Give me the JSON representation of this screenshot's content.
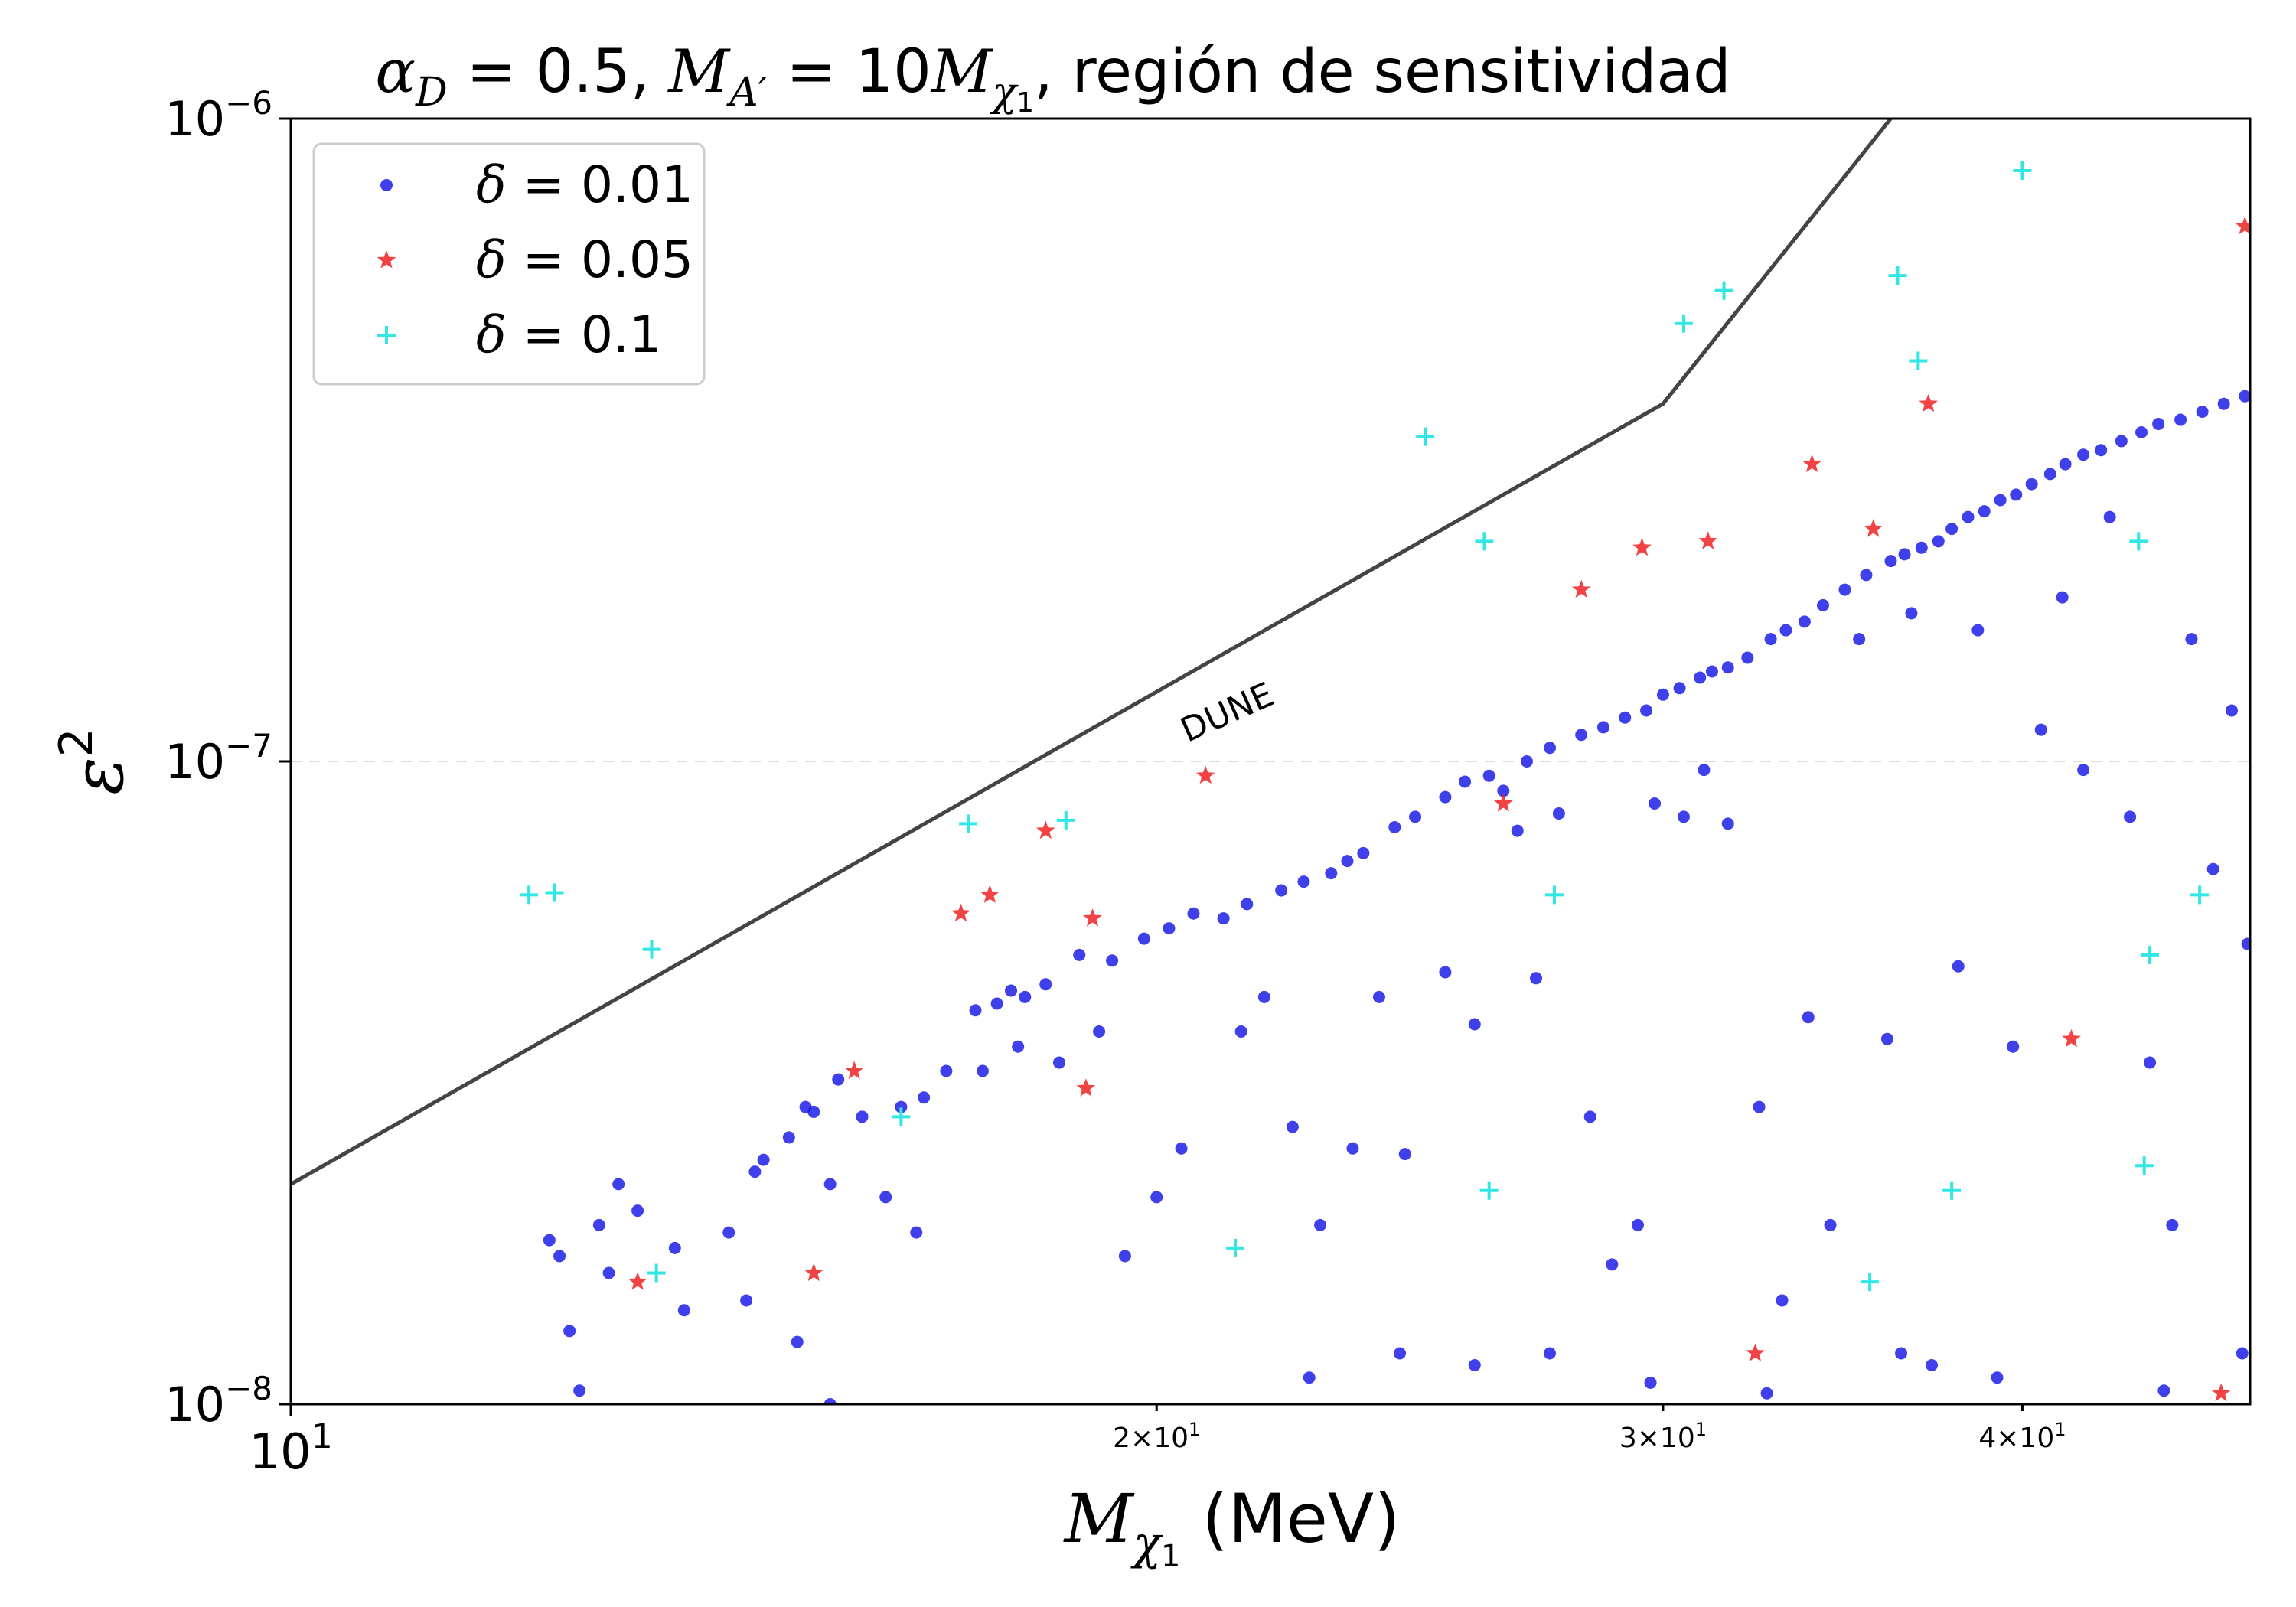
{
  "chart_data": {
    "type": "scatter",
    "title": {
      "alpha_sym": "α",
      "alpha_sub": "D",
      "alpha_val": " = 0.5, ",
      "mass_sym": "M",
      "mass_sub": "A′",
      "mass_eq": " = 10",
      "mass2_sym": "M",
      "mass2_sub": "χ",
      "mass2_subsub": "1",
      "rest": ", región de sensitividad"
    },
    "xlabel": {
      "sym": "M",
      "sub": "χ",
      "subsub": "1",
      "unit": " (MeV)"
    },
    "ylabel": {
      "sym": "ε",
      "sup": "2"
    },
    "xscale": "log",
    "yscale": "log",
    "xlim": [
      10,
      48
    ],
    "ylim": [
      1e-08,
      1e-06
    ],
    "x_ticks": [
      {
        "value": 10,
        "base": "10",
        "exp": "1",
        "major": true
      },
      {
        "value": 20,
        "base": "2×10",
        "exp": "1",
        "major": false
      },
      {
        "value": 30,
        "base": "3×10",
        "exp": "1",
        "major": false
      },
      {
        "value": 40,
        "base": "4×10",
        "exp": "1",
        "major": false
      }
    ],
    "y_ticks": [
      {
        "value": 1e-08,
        "base": "10",
        "exp": "−8"
      },
      {
        "value": 1e-07,
        "base": "10",
        "exp": "−7"
      },
      {
        "value": 1e-06,
        "base": "10",
        "exp": "−6"
      }
    ],
    "hline": {
      "value": 1e-07,
      "color": "#dddddd"
    },
    "legend_position": "top-left",
    "curve": {
      "label": "DUNE",
      "label_at": [
        20.5,
        1.07e-07
      ],
      "color": "#444444",
      "points": [
        [
          10,
          2.2e-08
        ],
        [
          30,
          3.6e-07
        ],
        [
          36,
          1e-06
        ]
      ]
    },
    "series": [
      {
        "name": "δ = 0.01",
        "name_sym": "δ",
        "name_val": " = 0.01",
        "marker": "dot",
        "color": "#1f1fe6",
        "points": [
          [
            12.3,
            1.8e-08
          ],
          [
            12.4,
            1.7e-08
          ],
          [
            12.8,
            1.9e-08
          ],
          [
            13.0,
            2.2e-08
          ],
          [
            13.2,
            2e-08
          ],
          [
            13.6,
            1.75e-08
          ],
          [
            14.2,
            1.85e-08
          ],
          [
            14.5,
            2.3e-08
          ],
          [
            14.6,
            2.4e-08
          ],
          [
            14.9,
            2.6e-08
          ],
          [
            15.1,
            2.9e-08
          ],
          [
            15.2,
            2.85e-08
          ],
          [
            15.5,
            3.2e-08
          ],
          [
            15.8,
            2.8e-08
          ],
          [
            16.3,
            2.9e-08
          ],
          [
            16.6,
            3e-08
          ],
          [
            16.9,
            3.3e-08
          ],
          [
            17.3,
            4.1e-08
          ],
          [
            17.6,
            4.2e-08
          ],
          [
            17.8,
            4.4e-08
          ],
          [
            18.0,
            4.3e-08
          ],
          [
            18.3,
            4.5e-08
          ],
          [
            18.8,
            5e-08
          ],
          [
            19.3,
            4.9e-08
          ],
          [
            19.8,
            5.3e-08
          ],
          [
            20.2,
            5.5e-08
          ],
          [
            20.6,
            5.8e-08
          ],
          [
            21.1,
            5.7e-08
          ],
          [
            21.5,
            6e-08
          ],
          [
            22.1,
            6.3e-08
          ],
          [
            22.5,
            6.5e-08
          ],
          [
            23.0,
            6.7e-08
          ],
          [
            23.3,
            7e-08
          ],
          [
            23.6,
            7.2e-08
          ],
          [
            24.2,
            7.9e-08
          ],
          [
            24.6,
            8.2e-08
          ],
          [
            25.2,
            8.8e-08
          ],
          [
            25.6,
            9.3e-08
          ],
          [
            26.1,
            9.5e-08
          ],
          [
            26.4,
            9e-08
          ],
          [
            26.9,
            1e-07
          ],
          [
            27.4,
            1.05e-07
          ],
          [
            28.1,
            1.1e-07
          ],
          [
            28.6,
            1.13e-07
          ],
          [
            29.1,
            1.17e-07
          ],
          [
            29.6,
            1.2e-07
          ],
          [
            30.0,
            1.27e-07
          ],
          [
            30.4,
            1.3e-07
          ],
          [
            30.9,
            1.35e-07
          ],
          [
            31.2,
            1.38e-07
          ],
          [
            31.6,
            1.4e-07
          ],
          [
            32.1,
            1.45e-07
          ],
          [
            32.7,
            1.55e-07
          ],
          [
            33.1,
            1.6e-07
          ],
          [
            33.6,
            1.65e-07
          ],
          [
            34.1,
            1.75e-07
          ],
          [
            34.7,
            1.85e-07
          ],
          [
            35.3,
            1.95e-07
          ],
          [
            36.0,
            2.05e-07
          ],
          [
            36.4,
            2.1e-07
          ],
          [
            36.9,
            2.15e-07
          ],
          [
            37.4,
            2.2e-07
          ],
          [
            37.8,
            2.3e-07
          ],
          [
            38.3,
            2.4e-07
          ],
          [
            38.8,
            2.45e-07
          ],
          [
            39.3,
            2.55e-07
          ],
          [
            39.8,
            2.6e-07
          ],
          [
            40.3,
            2.7e-07
          ],
          [
            40.9,
            2.8e-07
          ],
          [
            41.4,
            2.9e-07
          ],
          [
            42.0,
            3e-07
          ],
          [
            42.6,
            3.05e-07
          ],
          [
            43.3,
            3.15e-07
          ],
          [
            44.0,
            3.25e-07
          ],
          [
            44.6,
            3.35e-07
          ],
          [
            45.4,
            3.4e-07
          ],
          [
            46.2,
            3.5e-07
          ],
          [
            47.0,
            3.6e-07
          ],
          [
            47.8,
            3.7e-07
          ],
          [
            12.5,
            1.3e-08
          ],
          [
            12.9,
            1.6e-08
          ],
          [
            13.7,
            1.4e-08
          ],
          [
            14.4,
            1.45e-08
          ],
          [
            15.0,
            1.25e-08
          ],
          [
            15.4,
            2.2e-08
          ],
          [
            16.1,
            2.1e-08
          ],
          [
            16.5,
            1.85e-08
          ],
          [
            17.4,
            3.3e-08
          ],
          [
            17.9,
            3.6e-08
          ],
          [
            18.5,
            3.4e-08
          ],
          [
            19.1,
            3.8e-08
          ],
          [
            19.5,
            1.7e-08
          ],
          [
            20.0,
            2.1e-08
          ],
          [
            20.4,
            2.5e-08
          ],
          [
            21.4,
            3.8e-08
          ],
          [
            21.8,
            4.3e-08
          ],
          [
            22.3,
            2.7e-08
          ],
          [
            22.8,
            1.9e-08
          ],
          [
            23.4,
            2.5e-08
          ],
          [
            23.9,
            4.3e-08
          ],
          [
            24.4,
            2.45e-08
          ],
          [
            25.2,
            4.7e-08
          ],
          [
            25.8,
            3.9e-08
          ],
          [
            26.7,
            7.8e-08
          ],
          [
            27.1,
            4.6e-08
          ],
          [
            27.6,
            8.3e-08
          ],
          [
            28.3,
            2.8e-08
          ],
          [
            28.8,
            1.65e-08
          ],
          [
            29.4,
            1.9e-08
          ],
          [
            29.8,
            8.6e-08
          ],
          [
            30.5,
            8.2e-08
          ],
          [
            31.0,
            9.7e-08
          ],
          [
            31.6,
            8e-08
          ],
          [
            32.4,
            2.9e-08
          ],
          [
            33.0,
            1.45e-08
          ],
          [
            33.7,
            4e-08
          ],
          [
            34.3,
            1.9e-08
          ],
          [
            35.1,
            1.55e-07
          ],
          [
            35.9,
            3.7e-08
          ],
          [
            36.6,
            1.7e-07
          ],
          [
            37.2,
            1.15e-08
          ],
          [
            38.0,
            4.8e-08
          ],
          [
            38.6,
            1.6e-07
          ],
          [
            39.7,
            3.6e-08
          ],
          [
            40.6,
            1.12e-07
          ],
          [
            41.3,
            1.8e-07
          ],
          [
            42.0,
            9.7e-08
          ],
          [
            42.9,
            2.4e-07
          ],
          [
            43.6,
            8.2e-08
          ],
          [
            44.3,
            3.4e-08
          ],
          [
            45.1,
            1.9e-08
          ],
          [
            45.8,
            1.55e-07
          ],
          [
            46.6,
            6.8e-08
          ],
          [
            47.3,
            1.2e-07
          ],
          [
            47.9,
            5.2e-08
          ],
          [
            12.6,
            1.05e-08
          ],
          [
            15.4,
            1e-08
          ],
          [
            22.6,
            1.1e-08
          ],
          [
            24.3,
            1.2e-08
          ],
          [
            25.8,
            1.15e-08
          ],
          [
            27.4,
            1.2e-08
          ],
          [
            29.7,
            1.08e-08
          ],
          [
            32.6,
            1.04e-08
          ],
          [
            36.3,
            1.2e-08
          ],
          [
            39.2,
            1.1e-08
          ],
          [
            44.8,
            1.05e-08
          ],
          [
            47.7,
            1.2e-08
          ]
        ]
      },
      {
        "name": "δ = 0.05",
        "name_sym": "δ",
        "name_val": " = 0.05",
        "marker": "star",
        "color": "#ee2222",
        "points": [
          [
            13.2,
            1.55e-08
          ],
          [
            15.2,
            1.6e-08
          ],
          [
            15.7,
            3.3e-08
          ],
          [
            17.1,
            5.8e-08
          ],
          [
            17.5,
            6.2e-08
          ],
          [
            18.3,
            7.8e-08
          ],
          [
            18.9,
            3.1e-08
          ],
          [
            19.0,
            5.7e-08
          ],
          [
            20.8,
            9.5e-08
          ],
          [
            26.4,
            8.6e-08
          ],
          [
            28.1,
            1.85e-07
          ],
          [
            29.5,
            2.15e-07
          ],
          [
            31.1,
            2.2e-07
          ],
          [
            32.3,
            1.2e-08
          ],
          [
            33.8,
            2.9e-07
          ],
          [
            35.5,
            2.3e-07
          ],
          [
            37.1,
            3.6e-07
          ],
          [
            41.6,
            3.7e-08
          ],
          [
            46.9,
            1.04e-08
          ],
          [
            47.8,
            6.8e-07
          ]
        ]
      },
      {
        "name": "δ = 0.1",
        "name_sym": "δ",
        "name_val": " = 0.1",
        "marker": "plus",
        "color": "#33e6e6",
        "points": [
          [
            12.1,
            6.2e-08
          ],
          [
            12.35,
            6.25e-08
          ],
          [
            13.35,
            5.1e-08
          ],
          [
            13.4,
            1.6e-08
          ],
          [
            16.3,
            2.8e-08
          ],
          [
            17.2,
            8e-08
          ],
          [
            18.6,
            8.1e-08
          ],
          [
            21.3,
            1.75e-08
          ],
          [
            24.8,
            3.2e-07
          ],
          [
            26.0,
            2.2e-07
          ],
          [
            26.1,
            2.15e-08
          ],
          [
            27.5,
            6.2e-08
          ],
          [
            30.5,
            4.8e-07
          ],
          [
            31.5,
            5.4e-07
          ],
          [
            35.4,
            1.55e-08
          ],
          [
            36.2,
            5.7e-07
          ],
          [
            36.8,
            4.2e-07
          ],
          [
            37.8,
            2.15e-08
          ],
          [
            40.0,
            8.3e-07
          ],
          [
            43.9,
            2.2e-07
          ],
          [
            44.1,
            2.35e-08
          ],
          [
            44.3,
            5e-08
          ],
          [
            46.1,
            6.2e-08
          ]
        ]
      }
    ]
  }
}
